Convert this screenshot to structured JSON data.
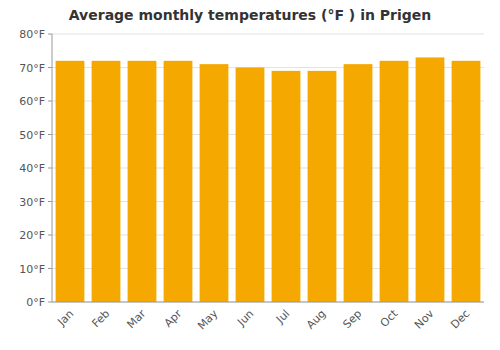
{
  "chart_data": {
    "type": "bar",
    "title": "Average monthly temperatures (°F ) in Prigen",
    "categories": [
      "Jan",
      "Feb",
      "Mar",
      "Apr",
      "May",
      "Jun",
      "Jul",
      "Aug",
      "Sep",
      "Oct",
      "Nov",
      "Dec"
    ],
    "values": [
      72,
      72,
      72,
      72,
      71,
      70,
      69,
      69,
      71,
      72,
      73,
      72
    ],
    "color": "#F5A800",
    "ylim": [
      0,
      80
    ],
    "yticks": [
      {
        "value": 0,
        "label": "0°F"
      },
      {
        "value": 10,
        "label": "10°F"
      },
      {
        "value": 20,
        "label": "20°F"
      },
      {
        "value": 30,
        "label": "30°F"
      },
      {
        "value": 40,
        "label": "40°F"
      },
      {
        "value": 50,
        "label": "50°F"
      },
      {
        "value": 60,
        "label": "60°F"
      },
      {
        "value": 70,
        "label": "70°F"
      },
      {
        "value": 80,
        "label": "80°F"
      }
    ],
    "grid": true
  }
}
